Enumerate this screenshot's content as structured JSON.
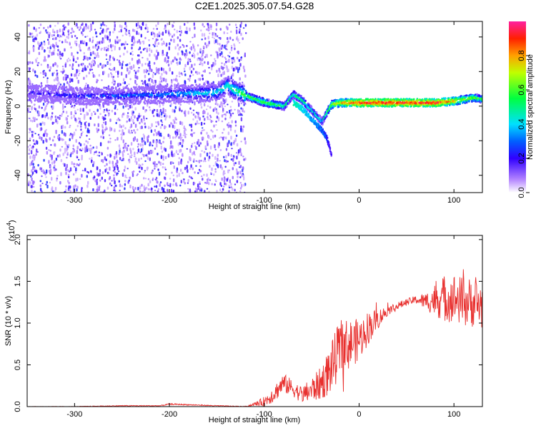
{
  "title": "C2E1.2025.305.07.54.G28",
  "chart_data": [
    {
      "type": "heatmap",
      "title": "C2E1.2025.305.07.54.G28",
      "xlabel": "Height of straight line (km)",
      "ylabel": "Frequency (Hz)",
      "xlim": [
        -350,
        130
      ],
      "ylim": [
        -50,
        49
      ],
      "xticks": [
        -300,
        -200,
        -100,
        0,
        100
      ],
      "xtick_labels": [
        "-300",
        "-200",
        "-100",
        "0",
        "100"
      ],
      "yticks": [
        -40,
        -20,
        0,
        20,
        40
      ],
      "ytick_labels": [
        "-40",
        "-20",
        "0",
        "20",
        "40"
      ],
      "colorbar": {
        "label": "Normalized spectral amplitude",
        "range": [
          0,
          1
        ],
        "ticks": [
          0.0,
          0.2,
          0.4,
          0.6,
          0.8
        ],
        "tick_labels": [
          "0.0",
          "0.2",
          "0.4",
          "0.6",
          "0.8"
        ],
        "colormap": "rainbow"
      },
      "noise_region_x": [
        -350,
        -120
      ],
      "ridge": {
        "description": "Frequency ridge of the signal",
        "x": [
          -350,
          -300,
          -250,
          -200,
          -150,
          -140,
          -130,
          -120,
          -110,
          -100,
          -90,
          -80,
          -70,
          -60,
          -50,
          -40,
          -30,
          -20,
          0,
          20,
          40,
          60,
          80,
          100,
          110,
          120,
          130
        ],
        "freq": [
          8,
          6,
          6,
          7,
          8,
          12,
          9,
          6,
          4,
          2,
          1,
          0,
          7,
          3,
          -3,
          -9,
          1,
          2,
          2,
          2,
          2,
          2,
          2,
          3,
          4,
          5,
          4
        ],
        "amplitude": [
          0.2,
          0.25,
          0.3,
          0.35,
          0.45,
          0.5,
          0.55,
          0.6,
          0.62,
          0.65,
          0.6,
          0.55,
          0.55,
          0.55,
          0.5,
          0.45,
          0.7,
          0.8,
          0.95,
          0.95,
          0.95,
          0.95,
          0.95,
          0.8,
          0.7,
          0.65,
          0.6
        ]
      },
      "branch": {
        "description": "Secondary descending trace",
        "x": [
          -70,
          -60,
          -50,
          -40,
          -35,
          -30
        ],
        "freq": [
          2,
          -2,
          -8,
          -14,
          -18,
          -28
        ],
        "amplitude": [
          0.45,
          0.4,
          0.35,
          0.3,
          0.25,
          0.15
        ]
      }
    },
    {
      "type": "line",
      "title": "",
      "xlabel": "Height of straight line (km)",
      "ylabel": "SNR (10 * v/v)",
      "yscale_label": "(x10",
      "yscale_exponent": "4",
      "yscale_suffix": ")",
      "xlim": [
        -350,
        130
      ],
      "ylim": [
        0,
        2.05
      ],
      "xticks": [
        -300,
        -200,
        -100,
        0,
        100
      ],
      "xtick_labels": [
        "-300",
        "-200",
        "-100",
        "0",
        "100"
      ],
      "yticks": [
        0.0,
        0.5,
        1.0,
        1.5,
        2.0
      ],
      "ytick_labels": [
        "0.0",
        "0.5",
        "1.0",
        "1.5",
        "2.0"
      ],
      "series": [
        {
          "name": "SNR",
          "color": "#e8302e",
          "x": [
            -350,
            -300,
            -250,
            -210,
            -200,
            -150,
            -120,
            -110,
            -100,
            -90,
            -80,
            -70,
            -60,
            -50,
            -40,
            -30,
            -20,
            -10,
            0,
            10,
            20,
            30,
            40,
            50,
            60,
            70,
            80,
            90,
            100,
            110,
            120,
            130
          ],
          "y": [
            0.0,
            0.0,
            0.01,
            0.01,
            0.03,
            0.01,
            0.0,
            0.03,
            0.06,
            0.15,
            0.28,
            0.22,
            0.14,
            0.2,
            0.28,
            0.45,
            0.7,
            0.75,
            0.8,
            0.95,
            1.05,
            1.15,
            1.2,
            1.25,
            1.28,
            1.26,
            1.28,
            1.3,
            1.3,
            1.25,
            1.25,
            1.2
          ],
          "noise": [
            0.003,
            0.003,
            0.005,
            0.005,
            0.008,
            0.005,
            0.005,
            0.02,
            0.06,
            0.1,
            0.12,
            0.1,
            0.1,
            0.15,
            0.2,
            0.3,
            0.35,
            0.3,
            0.25,
            0.2,
            0.12,
            0.06,
            0.05,
            0.04,
            0.05,
            0.1,
            0.2,
            0.28,
            0.3,
            0.3,
            0.3,
            0.3
          ]
        }
      ]
    }
  ]
}
